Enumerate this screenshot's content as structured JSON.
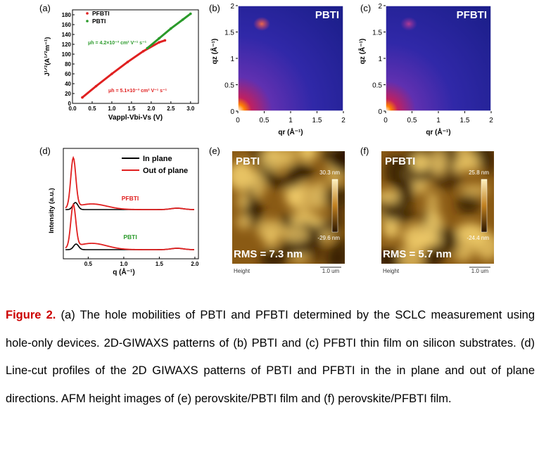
{
  "figure": {
    "panels": {
      "a": {
        "label": "(a)",
        "legend": [
          "PFBTI",
          "PBTI"
        ],
        "annot_pbti": "μh = 4.2×10⁻³ cm² V⁻¹ s⁻¹",
        "annot_pfbti": "μh = 5.1×10⁻³ cm² V⁻¹ s⁻¹",
        "ylabel": "J¹ᐟ²(A¹ᐟ²m⁻¹)",
        "xlabel": "Vappl-Vbi-Vs (V)",
        "yticks": [
          "180",
          "160",
          "140",
          "120",
          "100",
          "80",
          "60",
          "40",
          "20",
          "0"
        ],
        "xticks": [
          "0.0",
          "0.5",
          "1.0",
          "1.5",
          "2.0",
          "2.5",
          "3.0"
        ]
      },
      "b": {
        "label": "(b)",
        "title": "PBTI",
        "ylabel": "qz (Å⁻¹)",
        "xlabel": "qr (Å⁻¹)",
        "yticks": [
          "2",
          "1.5",
          "1",
          "0.5",
          "0"
        ],
        "xticks": [
          "0",
          "0.5",
          "1",
          "1.5",
          "2"
        ]
      },
      "c": {
        "label": "(c)",
        "title": "PFBTI",
        "ylabel": "qz (Å⁻¹)",
        "xlabel": "qr (Å⁻¹)",
        "yticks": [
          "2",
          "1.5",
          "1",
          "0.5",
          "0"
        ],
        "xticks": [
          "0",
          "0.5",
          "1",
          "1.5",
          "2"
        ]
      },
      "d": {
        "label": "(d)",
        "legend": [
          "In plane",
          "Out of plane"
        ],
        "curve_labels": [
          "PFBTI",
          "PBTI"
        ],
        "ylabel": "Intensity (a.u.)",
        "xlabel": "q (Å⁻¹)",
        "xticks": [
          "0.5",
          "1.0",
          "1.5",
          "2.0"
        ]
      },
      "e": {
        "label": "(e)",
        "title": "PBTI",
        "scale_max": "30.3 nm",
        "scale_min": "-29.6 nm",
        "rms": "RMS = 7.3 nm",
        "channel": "Height",
        "scalebar": "1.0 um"
      },
      "f": {
        "label": "(f)",
        "title": "PFBTI",
        "scale_max": "25.8 nm",
        "scale_min": "-24.4 nm",
        "rms": "RMS = 5.7 nm",
        "channel": "Height",
        "scalebar": "1.0 um"
      }
    }
  },
  "caption": {
    "label": "Figure 2.",
    "text": " (a) The hole mobilities of PBTI and PFBTI determined by the SCLC measurement using hole-only devices. 2D-GIWAXS patterns of (b) PBTI and (c) PFBTI thin film on silicon substrates. (d) Line-cut profiles of the 2D GIWAXS patterns of PBTI and PFBTI in the in plane and out of plane directions. AFM height images of (e) perovskite/PBTI film and (f) perovskite/PFBTI film."
  },
  "colors": {
    "red": "#e02020",
    "green": "#2a9a2a",
    "giwaxs_bg": "#1d1f8c",
    "afm_dark": "#3a2200",
    "afm_light": "#e8c060"
  },
  "chart_data": [
    {
      "panel": "a",
      "type": "line",
      "xlabel": "Vappl-Vbi-Vs (V)",
      "ylabel": "J¹ᐟ²(A¹ᐟ²m⁻¹)",
      "xlim": [
        0,
        3.2
      ],
      "ylim": [
        0,
        190
      ],
      "series": [
        {
          "name": "PFBTI",
          "x": [
            0.25,
            0.6,
            1.0,
            1.4,
            1.8,
            2.2,
            2.35
          ],
          "y": [
            12,
            35,
            60,
            84,
            106,
            124,
            128
          ]
        },
        {
          "name": "PBTI",
          "x": [
            1.9,
            2.2,
            2.5,
            2.8,
            3.0
          ],
          "y": [
            112,
            132,
            152,
            170,
            182
          ]
        }
      ]
    },
    {
      "panel": "d",
      "type": "line",
      "xlabel": "q (Å⁻¹)",
      "ylabel": "Intensity (a.u.)",
      "xlim": [
        0.15,
        2.05
      ],
      "series": [
        {
          "name": "In plane"
        },
        {
          "name": "Out of plane"
        }
      ]
    }
  ]
}
